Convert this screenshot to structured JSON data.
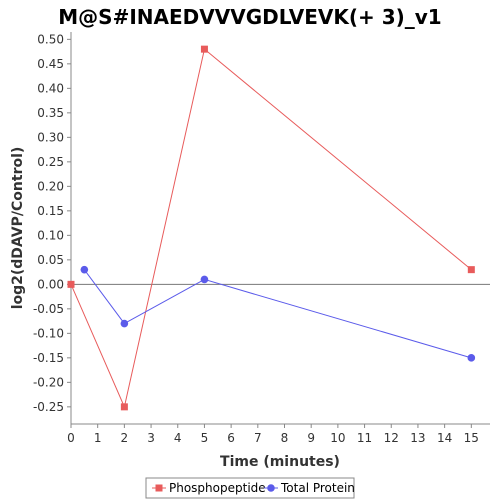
{
  "chart_data": {
    "type": "line",
    "title": "M@S#INAEDVVVGDLVEVK(+ 3)_v1",
    "xlabel": "Time (minutes)",
    "ylabel": "log2(dDAVP/Control)",
    "xlim": [
      0,
      15.7
    ],
    "ylim": [
      -0.285,
      0.515
    ],
    "x_ticks": [
      0,
      1,
      2,
      3,
      4,
      5,
      6,
      7,
      8,
      9,
      10,
      11,
      12,
      13,
      14,
      15
    ],
    "y_ticks": [
      0.5,
      0.45,
      0.4,
      0.35,
      0.3,
      0.25,
      0.2,
      0.15,
      0.1,
      0.05,
      0.0,
      -0.05,
      -0.1,
      -0.15,
      -0.2,
      -0.25
    ],
    "y_tick_labels": [
      "0.50",
      "0.45",
      "0.40",
      "0.35",
      "0.30",
      "0.25",
      "0.20",
      "0.15",
      "0.10",
      "0.05",
      "0.00",
      "-0.05",
      "-0.10",
      "-0.15",
      "-0.20",
      "-0.25"
    ],
    "zero_line": true,
    "grid": false,
    "legend_position": "bottom",
    "series": [
      {
        "name": "Phosphopeptide",
        "color": "#e85b5b",
        "marker": "square",
        "x": [
          0,
          2,
          5,
          15
        ],
        "y": [
          0.0,
          -0.25,
          0.48,
          0.03
        ]
      },
      {
        "name": "Total Protein",
        "color": "#5b5bea",
        "marker": "circle",
        "x": [
          0.5,
          2,
          5,
          15
        ],
        "y": [
          0.03,
          -0.08,
          0.01,
          -0.15
        ]
      }
    ]
  }
}
